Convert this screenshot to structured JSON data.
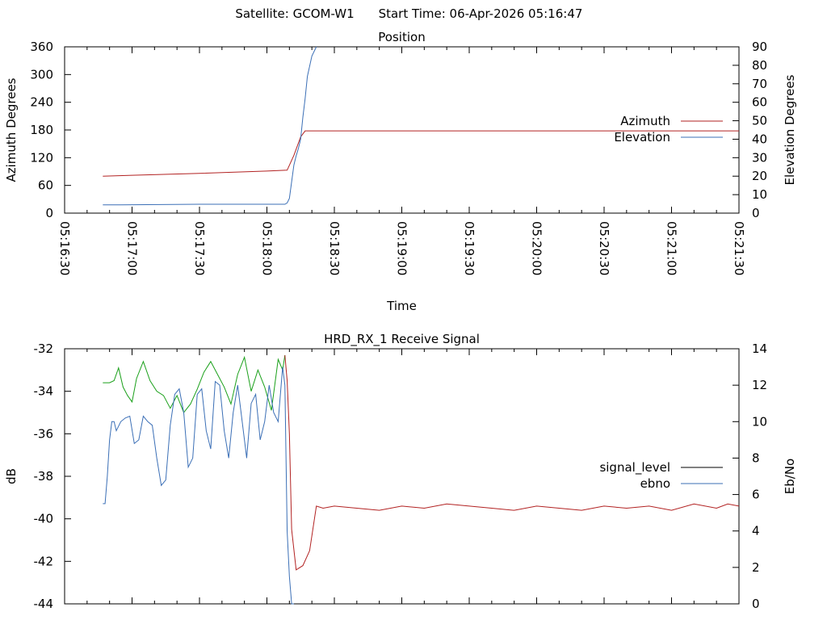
{
  "header": {
    "satellite": "Satellite: GCOM-W1",
    "start_time": "Start Time: 06-Apr-2026 05:16:47"
  },
  "colors": {
    "azimuth": "#b22222",
    "elevation": "#3b6fb6",
    "signal_green": "#1aa01a",
    "signal_red": "#b22222",
    "ebno": "#3b6fb6",
    "axis": "#000000",
    "legend_signal": "#000000"
  },
  "chart_data": [
    {
      "type": "line",
      "title": "Position",
      "xlabel": "Time",
      "ylabel": "Azimuth Degrees",
      "y2label": "Elevation Degrees",
      "x_ticks": [
        "05:16:30",
        "05:17:00",
        "05:17:30",
        "05:18:00",
        "05:18:30",
        "05:19:00",
        "05:19:30",
        "05:20:00",
        "05:20:30",
        "05:21:00",
        "05:21:30"
      ],
      "y_ticks": [
        "0",
        "60",
        "120",
        "180",
        "240",
        "300",
        "360"
      ],
      "y2_ticks": [
        "0",
        "10",
        "20",
        "30",
        "40",
        "50",
        "60",
        "70",
        "80",
        "90"
      ],
      "ylim": [
        0,
        360
      ],
      "y2lim": [
        0,
        90
      ],
      "xlim_seconds_from_tick0": [
        0,
        300
      ],
      "legend_position": "right",
      "series": [
        {
          "name": "Azimuth",
          "axis": "y",
          "x": [
            17,
            30,
            60,
            90,
            99,
            102,
            105,
            107,
            300
          ],
          "y": [
            80,
            82,
            86,
            91,
            93,
            125,
            165,
            178,
            178
          ]
        },
        {
          "name": "Elevation",
          "axis": "y2",
          "x": [
            17,
            25,
            60,
            90,
            98,
            99,
            100,
            101,
            102,
            103,
            104,
            105,
            106,
            107,
            108,
            110,
            112
          ],
          "y": [
            4.5,
            4.5,
            4.8,
            4.8,
            4.8,
            5.5,
            8,
            17,
            26,
            31,
            35,
            40,
            52,
            62,
            74,
            85,
            90
          ]
        }
      ]
    },
    {
      "type": "line",
      "title": "HRD_RX_1 Receive Signal",
      "xlabel": "",
      "ylabel": "dB",
      "y2label": "Eb/No",
      "y_ticks": [
        "-32",
        "-34",
        "-36",
        "-38",
        "-40",
        "-42",
        "-44"
      ],
      "y2_ticks": [
        "0",
        "2",
        "4",
        "6",
        "8",
        "10",
        "12",
        "14"
      ],
      "ylim": [
        -44,
        -32
      ],
      "y2lim": [
        0,
        14
      ],
      "xlim_seconds_from_tick0": [
        0,
        300
      ],
      "legend_position": "right",
      "series": [
        {
          "name": "signal_level",
          "axis": "y",
          "x": [
            17,
            20,
            22,
            24,
            26,
            28,
            30,
            32,
            35,
            38,
            41,
            44,
            47,
            50,
            53,
            56,
            59,
            62,
            65,
            68,
            71,
            74,
            77,
            80,
            83,
            86,
            89,
            92,
            95,
            97,
            98,
            99,
            100,
            101,
            103,
            106,
            109,
            112,
            115,
            120,
            130,
            140,
            150,
            160,
            170,
            180,
            190,
            200,
            210,
            220,
            230,
            240,
            250,
            260,
            270,
            280,
            290,
            295,
            300
          ],
          "y": [
            -33.6,
            -33.6,
            -33.5,
            -32.9,
            -33.8,
            -34.2,
            -34.5,
            -33.4,
            -32.6,
            -33.5,
            -34.0,
            -34.2,
            -34.8,
            -34.2,
            -35.0,
            -34.6,
            -33.9,
            -33.1,
            -32.6,
            -33.2,
            -33.8,
            -34.6,
            -33.2,
            -32.4,
            -34.0,
            -33.0,
            -33.8,
            -34.9,
            -32.5,
            -33.0,
            -32.3,
            -33.5,
            -36.0,
            -40.5,
            -42.4,
            -42.2,
            -41.5,
            -39.4,
            -39.5,
            -39.4,
            -39.5,
            -39.6,
            -39.4,
            -39.5,
            -39.3,
            -39.4,
            -39.5,
            -39.6,
            -39.4,
            -39.5,
            -39.6,
            -39.4,
            -39.5,
            -39.4,
            -39.6,
            -39.3,
            -39.5,
            -39.3,
            -39.4
          ]
        },
        {
          "name": "ebno",
          "axis": "y2",
          "x": [
            17,
            18,
            19,
            20,
            21,
            22,
            23,
            25,
            27,
            29,
            31,
            33,
            35,
            37,
            39,
            41,
            43,
            45,
            47,
            49,
            51,
            53,
            55,
            57,
            59,
            61,
            63,
            65,
            67,
            69,
            71,
            73,
            75,
            77,
            79,
            81,
            83,
            85,
            87,
            89,
            91,
            93,
            95,
            97,
            98,
            99,
            100,
            101,
            102
          ],
          "y": [
            5.5,
            5.5,
            7.0,
            9.0,
            10.0,
            10.0,
            9.5,
            10.0,
            10.2,
            10.3,
            8.8,
            9.0,
            10.3,
            10.0,
            9.8,
            8.0,
            6.5,
            6.8,
            9.8,
            11.5,
            11.8,
            10.5,
            7.5,
            8.0,
            11.5,
            11.8,
            9.5,
            8.5,
            12.2,
            12.0,
            9.5,
            8.0,
            10.5,
            12.0,
            10.0,
            8.0,
            11.0,
            11.5,
            9.0,
            10.0,
            12.0,
            10.5,
            10.0,
            13.0,
            12.0,
            4.0,
            1.5,
            0.0,
            0.0
          ]
        }
      ]
    }
  ]
}
